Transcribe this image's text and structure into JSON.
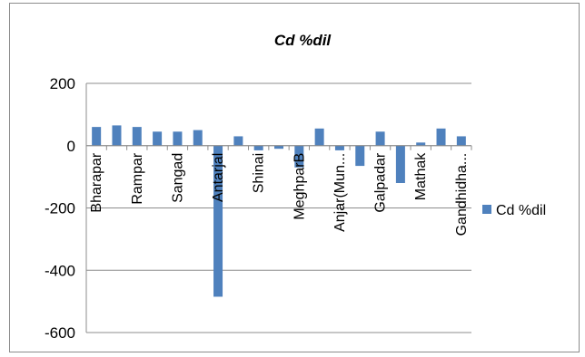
{
  "chart_data": {
    "type": "bar",
    "title": "Cd %dil",
    "xlabel": "",
    "ylabel": "",
    "ylim": [
      -600,
      200
    ],
    "yticks": [
      200,
      0,
      -200,
      -400,
      -600
    ],
    "categories": [
      "Bharapar",
      "",
      "Rampar",
      "",
      "Sangad",
      "",
      "Antarjal",
      "",
      "Shinai",
      "",
      "MeghparB",
      "",
      "Anjar(Mun...",
      "",
      "Galpadar",
      "",
      "Mathak",
      "",
      "Gandhidha..."
    ],
    "series": [
      {
        "name": "Cd %dil",
        "color": "#4f81bd",
        "values": [
          60,
          65,
          60,
          45,
          45,
          50,
          -485,
          30,
          -15,
          -10,
          -70,
          55,
          -15,
          -65,
          45,
          -120,
          10,
          55,
          30
        ]
      }
    ],
    "grid": true,
    "legend": "right"
  }
}
